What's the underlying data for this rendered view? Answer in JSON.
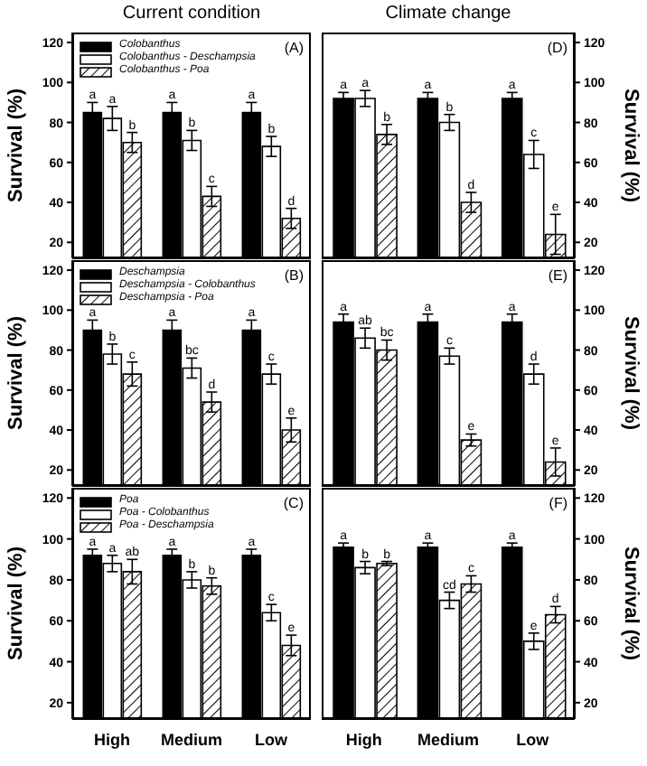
{
  "chart_data": [
    {
      "type": "bar",
      "title": "Current condition",
      "ylabel": "Survival (%)",
      "categories": [
        null,
        null,
        null
      ],
      "ylim": [
        12,
        125
      ],
      "yticks": [
        20,
        40,
        60,
        80,
        100,
        120
      ],
      "legend": "top left",
      "tick_labels": "y",
      "annotations": [
        "(A)"
      ],
      "series": [
        {
          "name": "Colobanthus",
          "color": "#000000",
          "values": [
            85,
            85,
            85
          ],
          "errors": [
            5,
            5,
            5
          ],
          "value_labels": [
            "a",
            "a",
            "a"
          ]
        },
        {
          "name": "Colobanthus - Deschampsia",
          "color": "#ffffff",
          "values": [
            82,
            71,
            68
          ],
          "errors": [
            6,
            5,
            5
          ],
          "value_labels": [
            "a",
            "b",
            "b"
          ]
        },
        {
          "name": "Colobanthus - Poa",
          "color": "#000000",
          "values": [
            70,
            43,
            32
          ],
          "errors": [
            5,
            5,
            5
          ],
          "value_labels": [
            "b",
            "c",
            "d"
          ]
        }
      ]
    },
    {
      "type": "bar",
      "ylabel": "Survival (%)",
      "categories": [
        null,
        null,
        null
      ],
      "ylim": [
        12,
        125
      ],
      "yticks": [
        20,
        40,
        60,
        80,
        100,
        120
      ],
      "legend": "top left",
      "tick_labels": "y",
      "annotations": [
        "(B)"
      ],
      "series": [
        {
          "name": "Deschampsia",
          "color": "#000000",
          "values": [
            90,
            90,
            90
          ],
          "errors": [
            5,
            5,
            5
          ],
          "value_labels": [
            "a",
            "a",
            "a"
          ]
        },
        {
          "name": "Deschampsia - Colobanthus",
          "color": "#ffffff",
          "values": [
            78,
            71,
            68
          ],
          "errors": [
            5,
            5,
            5
          ],
          "value_labels": [
            "b",
            "bc",
            "c"
          ]
        },
        {
          "name": "Deschampsia - Poa",
          "color": "#000000",
          "values": [
            68,
            54,
            40
          ],
          "errors": [
            6,
            5,
            6
          ],
          "value_labels": [
            "c",
            "d",
            "e"
          ]
        }
      ]
    },
    {
      "type": "bar",
      "ylabel": "Survival (%)",
      "categories": [
        "High",
        "Medium",
        "Low"
      ],
      "ylim": [
        12,
        125
      ],
      "yticks": [
        20,
        40,
        60,
        80,
        100,
        120
      ],
      "legend": "top left",
      "annotations": [
        "(C)"
      ],
      "series": [
        {
          "name": "Poa",
          "color": "#000000",
          "values": [
            92,
            92,
            92
          ],
          "errors": [
            3,
            3,
            3
          ],
          "value_labels": [
            "a",
            "a",
            "a"
          ]
        },
        {
          "name": "Poa - Colobanthus",
          "color": "#ffffff",
          "values": [
            88,
            80,
            64
          ],
          "errors": [
            4,
            4,
            4
          ],
          "value_labels": [
            "a",
            "b",
            "c"
          ]
        },
        {
          "name": "Poa - Deschampsia",
          "color": "#000000",
          "values": [
            84,
            77,
            48
          ],
          "errors": [
            6,
            4,
            5
          ],
          "value_labels": [
            "ab",
            "b",
            "e"
          ]
        }
      ]
    },
    {
      "type": "bar",
      "title": "Climate change",
      "ylabel": "Survival (%)",
      "categories": [
        null,
        null,
        null
      ],
      "ylim": [
        12,
        125
      ],
      "yticks": [
        20,
        40,
        60,
        80,
        100,
        120
      ],
      "tick_labels": "y",
      "annotations": [
        "(D)"
      ],
      "series": [
        {
          "color": "#000000",
          "values": [
            92,
            92,
            92
          ],
          "errors": [
            3,
            3,
            3
          ],
          "value_labels": [
            "a",
            "a",
            "a"
          ]
        },
        {
          "color": "#ffffff",
          "values": [
            92,
            80,
            64
          ],
          "errors": [
            4,
            4,
            7
          ],
          "value_labels": [
            "a",
            "b",
            "c"
          ]
        },
        {
          "color": "#000000",
          "values": [
            74,
            40,
            24
          ],
          "errors": [
            5,
            5,
            10
          ],
          "value_labels": [
            "b",
            "d",
            "e"
          ]
        }
      ]
    },
    {
      "type": "bar",
      "ylabel": "Survival (%)",
      "categories": [
        null,
        null,
        null
      ],
      "ylim": [
        12,
        125
      ],
      "yticks": [
        20,
        40,
        60,
        80,
        100,
        120
      ],
      "tick_labels": "y",
      "annotations": [
        "(E)"
      ],
      "series": [
        {
          "color": "#000000",
          "values": [
            94,
            94,
            94
          ],
          "errors": [
            4,
            4,
            4
          ],
          "value_labels": [
            "a",
            "a",
            "a"
          ]
        },
        {
          "color": "#ffffff",
          "values": [
            86,
            77,
            68
          ],
          "errors": [
            5,
            4,
            5
          ],
          "value_labels": [
            "ab",
            "c",
            "d"
          ]
        },
        {
          "color": "#000000",
          "values": [
            80,
            35,
            24
          ],
          "errors": [
            5,
            3,
            7
          ],
          "value_labels": [
            "bc",
            "e",
            "e"
          ]
        }
      ]
    },
    {
      "type": "bar",
      "ylabel": "Survival (%)",
      "categories": [
        "High",
        "Medium",
        "Low"
      ],
      "ylim": [
        12,
        125
      ],
      "yticks": [
        20,
        40,
        60,
        80,
        100,
        120
      ],
      "annotations": [
        "(F)"
      ],
      "series": [
        {
          "color": "#000000",
          "values": [
            96,
            96,
            96
          ],
          "errors": [
            2,
            2,
            2
          ],
          "value_labels": [
            "a",
            "a",
            "a"
          ]
        },
        {
          "color": "#ffffff",
          "values": [
            86,
            70,
            50
          ],
          "errors": [
            3,
            4,
            4
          ],
          "value_labels": [
            "b",
            "cd",
            "e"
          ]
        },
        {
          "color": "#000000",
          "values": [
            88,
            78,
            63
          ],
          "errors": [
            1,
            4,
            4
          ],
          "value_labels": [
            "b",
            "c",
            "d"
          ]
        }
      ]
    }
  ]
}
